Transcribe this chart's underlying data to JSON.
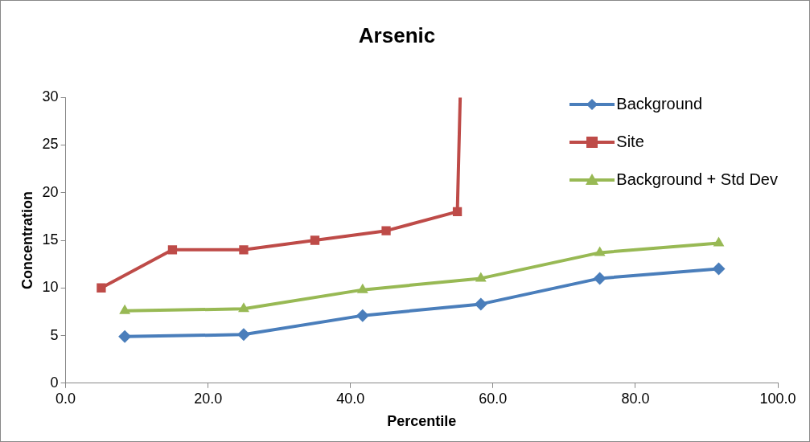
{
  "chart_data": {
    "type": "line",
    "title": "Arsenic",
    "xlabel": "Percentile",
    "ylabel": "Concentration",
    "xlim": [
      0,
      100
    ],
    "xticks": [
      {
        "value": 0,
        "label": "0.0"
      },
      {
        "value": 20,
        "label": "20.0"
      },
      {
        "value": 40,
        "label": "40.0"
      },
      {
        "value": 60,
        "label": "60.0"
      },
      {
        "value": 80,
        "label": "80.0"
      },
      {
        "value": 100,
        "label": "100.0"
      }
    ],
    "ylim": [
      0,
      30
    ],
    "yticks": [
      0,
      5,
      10,
      15,
      20,
      25,
      30
    ],
    "grid": false,
    "legend": "top right",
    "series": [
      {
        "name": "Background",
        "color": "#4a7ebb",
        "marker": "diamond",
        "x": [
          8.3,
          25,
          41.7,
          58.3,
          75,
          91.7
        ],
        "values": [
          4.9,
          5.1,
          7.1,
          8.3,
          11.0,
          12.0
        ]
      },
      {
        "name": "Site",
        "color": "#be4b48",
        "marker": "square",
        "x": [
          5,
          15,
          25,
          35,
          45,
          55,
          55.4
        ],
        "values": [
          10,
          14,
          14,
          15,
          16,
          18,
          30
        ]
      },
      {
        "name": "Background + Std Dev",
        "color": "#98b954",
        "marker": "triangle",
        "x": [
          8.3,
          25,
          41.7,
          58.3,
          75,
          91.7
        ],
        "values": [
          7.6,
          7.8,
          9.8,
          11.0,
          13.7,
          14.7
        ]
      }
    ]
  }
}
